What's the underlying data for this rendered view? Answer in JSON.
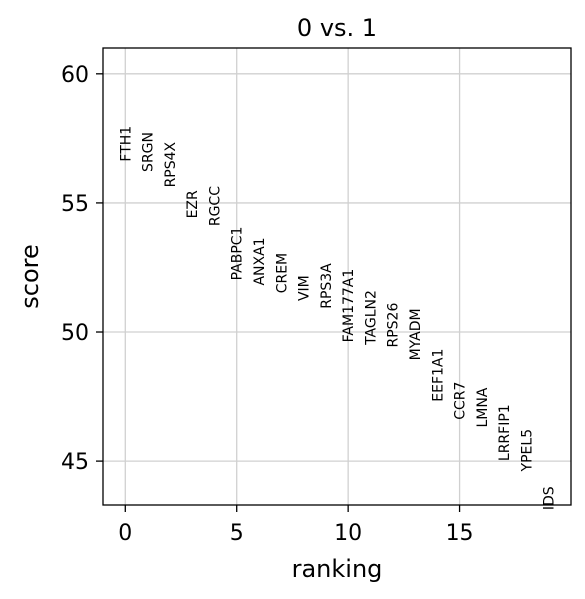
{
  "chart_data": {
    "type": "scatter",
    "title": "0 vs. 1",
    "xlabel": "ranking",
    "ylabel": "score",
    "xlim": [
      -1,
      20
    ],
    "ylim": [
      43.3,
      61.0
    ],
    "xticks": [
      0,
      5,
      10,
      15
    ],
    "yticks": [
      45,
      50,
      55,
      60
    ],
    "grid": true,
    "points": [
      {
        "x": 0,
        "y": 56.6,
        "label": "FTH1"
      },
      {
        "x": 1,
        "y": 56.2,
        "label": "SRGN"
      },
      {
        "x": 2,
        "y": 55.6,
        "label": "RPS4X"
      },
      {
        "x": 3,
        "y": 54.4,
        "label": "EZR"
      },
      {
        "x": 4,
        "y": 54.1,
        "label": "RGCC"
      },
      {
        "x": 5,
        "y": 52.0,
        "label": "PABPC1"
      },
      {
        "x": 6,
        "y": 51.8,
        "label": "ANXA1"
      },
      {
        "x": 7,
        "y": 51.5,
        "label": "CREM"
      },
      {
        "x": 8,
        "y": 51.2,
        "label": "VIM"
      },
      {
        "x": 9,
        "y": 50.9,
        "label": "RPS3A"
      },
      {
        "x": 10,
        "y": 49.6,
        "label": "FAM177A1"
      },
      {
        "x": 11,
        "y": 49.5,
        "label": "TAGLN2"
      },
      {
        "x": 12,
        "y": 49.4,
        "label": "RPS26"
      },
      {
        "x": 13,
        "y": 48.9,
        "label": "MYADM"
      },
      {
        "x": 14,
        "y": 47.3,
        "label": "EEF1A1"
      },
      {
        "x": 15,
        "y": 46.6,
        "label": "CCR7"
      },
      {
        "x": 16,
        "y": 46.3,
        "label": "LMNA"
      },
      {
        "x": 17,
        "y": 45.0,
        "label": "LRRFIP1"
      },
      {
        "x": 18,
        "y": 44.6,
        "label": "YPEL5"
      },
      {
        "x": 19,
        "y": 43.1,
        "label": "IDS"
      }
    ]
  }
}
